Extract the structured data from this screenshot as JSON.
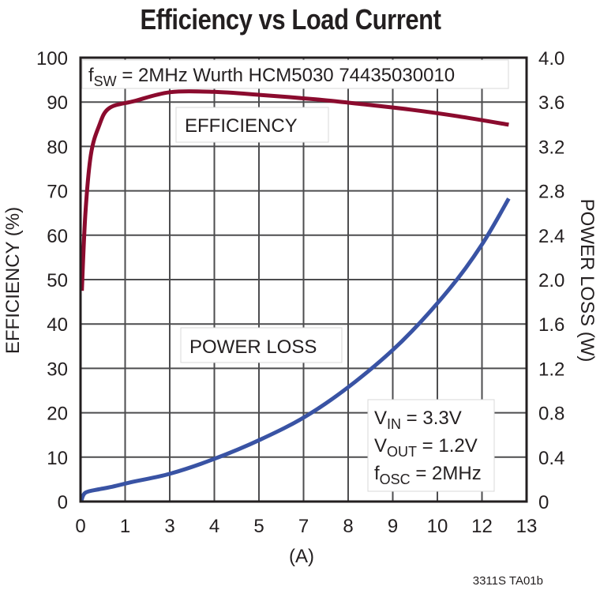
{
  "chart_data": {
    "type": "line",
    "title": "Efficiency vs Load Current",
    "xlabel": "(A)",
    "ylabel": "EFFICIENCY (%)",
    "y2label": "POWER LOSS (W)",
    "x_tick_labels": [
      "0",
      "1",
      "3",
      "4",
      "5",
      "7",
      "8",
      "9",
      "10",
      "12",
      "13"
    ],
    "y_tick_labels": [
      "0",
      "10",
      "20",
      "30",
      "40",
      "50",
      "60",
      "70",
      "80",
      "90",
      "100"
    ],
    "y2_tick_labels": [
      "0",
      "0.4",
      "0.8",
      "1.2",
      "1.6",
      "2.0",
      "2.4",
      "2.8",
      "3.2",
      "3.6",
      "4.0"
    ],
    "xlim_grid_index": [
      0,
      10
    ],
    "ylim": [
      0,
      100
    ],
    "y2lim": [
      0,
      4.0
    ],
    "grid": true,
    "note_x": "x positions given as grid-line index 0..10 (tick labels are evenly spaced as printed)",
    "series": [
      {
        "name": "EFFICIENCY",
        "axis": "left",
        "color": "#8b0b2e",
        "x": [
          0.03,
          0.11,
          0.23,
          0.41,
          0.64,
          1.2,
          2.0,
          2.97,
          4.04,
          5.27,
          6.34,
          7.4,
          8.46,
          9.6
        ],
        "values": [
          47.5,
          65,
          78,
          84.5,
          88.6,
          90.2,
          92.2,
          92.3,
          91.6,
          90.6,
          89.5,
          88.3,
          86.8,
          84.9
        ]
      },
      {
        "name": "POWER LOSS",
        "axis": "right",
        "color": "#3953a4",
        "x": [
          0.02,
          0.11,
          0.41,
          0.67,
          1.2,
          2.0,
          2.97,
          4.04,
          5.1,
          6.16,
          7.22,
          8.28,
          8.99,
          9.6
        ],
        "values": [
          0.01,
          0.08,
          0.11,
          0.13,
          0.18,
          0.25,
          0.38,
          0.56,
          0.78,
          1.08,
          1.45,
          1.92,
          2.31,
          2.73
        ]
      }
    ],
    "annotations": {
      "top_note": {
        "f": "f",
        "sub": "SW",
        "rest": " = 2MHz Wurth HCM5030 74435030010"
      },
      "efficiency_label": "EFFICIENCY",
      "power_loss_label": "POWER LOSS",
      "conditions": [
        {
          "main": "V",
          "sub": "IN",
          "rest": " = 3.3V"
        },
        {
          "main": "V",
          "sub": "OUT",
          "rest": " = 1.2V"
        },
        {
          "main": "f",
          "sub": "OSC",
          "rest": " = 2MHz"
        }
      ],
      "figure_id": "3311S TA01b"
    }
  }
}
